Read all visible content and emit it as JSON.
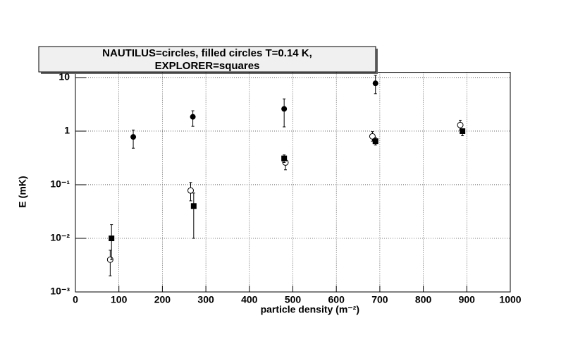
{
  "chart_data": {
    "type": "scatter",
    "title": [
      "NAUTILUS=circles, filled circles T=0.14 K,",
      "EXPLORER=squares"
    ],
    "x_label": "particle density (m⁻²)",
    "y_label": "E (mK)",
    "log_y": true,
    "grid": true,
    "xlim": [
      0,
      1000
    ],
    "xticks": [
      0,
      100,
      200,
      300,
      400,
      500,
      600,
      700,
      800,
      900,
      1000
    ],
    "ylim": [
      0.001,
      12.5
    ],
    "yticks": [
      {
        "value": 0.001,
        "label": "10⁻³"
      },
      {
        "value": 0.01,
        "label": "10⁻²"
      },
      {
        "value": 0.1,
        "label": "10⁻¹"
      },
      1,
      10
    ],
    "series": [
      {
        "marker": "filled-circle",
        "color": "#000000",
        "x": [
          133,
          270,
          480,
          690
        ],
        "values": [
          0.78,
          1.85,
          2.6,
          7.8
        ],
        "err_low": [
          0.3,
          0.62,
          1.4,
          2.8
        ],
        "err_high": [
          0.27,
          0.55,
          1.4,
          3.2
        ]
      },
      {
        "marker": "open-circle",
        "color": "#000000",
        "x": [
          80,
          265,
          483,
          683,
          885
        ],
        "values": [
          0.004,
          0.078,
          0.26,
          0.8,
          1.3
        ],
        "err_low": [
          0.002,
          0.028,
          0.07,
          0.15,
          0.25
        ],
        "err_high": [
          0.002,
          0.032,
          0.07,
          0.18,
          0.3
        ]
      },
      {
        "marker": "square",
        "color": "#000000",
        "x": [
          83,
          272,
          480,
          690,
          890
        ],
        "values": [
          0.01,
          0.04,
          0.31,
          0.65,
          1.0
        ],
        "err_low": [
          0.006,
          0.03,
          0.05,
          0.1,
          0.18
        ],
        "err_high": [
          0.008,
          0.03,
          0.05,
          0.1,
          0.1
        ]
      }
    ]
  }
}
